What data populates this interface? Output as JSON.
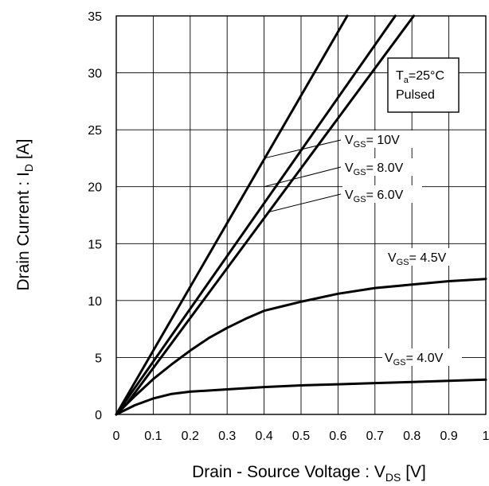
{
  "chart_data": {
    "type": "line",
    "xlabel": {
      "main": "Drain - Source Voltage : V",
      "sub": "DS",
      "unit": " [V]"
    },
    "ylabel": {
      "main": "Drain Current : I",
      "sub": "D",
      "unit": " [A]"
    },
    "xlim": [
      0,
      1
    ],
    "ylim": [
      0,
      35
    ],
    "x_ticks": [
      0,
      0.1,
      0.2,
      0.3,
      0.4,
      0.5,
      0.6,
      0.7,
      0.8,
      0.9,
      1
    ],
    "x_tick_labels": [
      "0",
      "0.1",
      "0.2",
      "0.3",
      "0.4",
      "0.5",
      "0.6",
      "0.7",
      "0.8",
      "0.9",
      "1"
    ],
    "y_ticks": [
      0,
      5,
      10,
      15,
      20,
      25,
      30,
      35
    ],
    "y_tick_labels": [
      "0",
      "5",
      "10",
      "15",
      "20",
      "25",
      "30",
      "35"
    ],
    "grid": true,
    "conditions": {
      "t_main": "T",
      "t_sub": "a",
      "t_rest": "=25°C",
      "line2": "Pulsed"
    },
    "series": [
      {
        "name": "VGS= 10V",
        "label_main": "V",
        "label_sub": "GS",
        "label_rest": "= 10V",
        "x": [
          0,
          0.625
        ],
        "y": [
          0,
          35
        ],
        "leader_at": [
          0.4,
          22.5
        ]
      },
      {
        "name": "VGS= 8.0V",
        "label_main": "V",
        "label_sub": "GS",
        "label_rest": "= 8.0V",
        "x": [
          0,
          0.755
        ],
        "y": [
          0,
          35
        ],
        "leader_at": [
          0.4,
          20.0
        ]
      },
      {
        "name": "VGS= 6.0V",
        "label_main": "V",
        "label_sub": "GS",
        "label_rest": "= 6.0V",
        "x": [
          0,
          0.03,
          0.805
        ],
        "y": [
          0,
          1.0,
          35
        ],
        "leader_at": [
          0.415,
          17.8
        ]
      },
      {
        "name": "VGS= 4.5V",
        "label_main": "V",
        "label_sub": "GS",
        "label_rest": "= 4.5V",
        "x": [
          0,
          0.05,
          0.1,
          0.15,
          0.2,
          0.25,
          0.3,
          0.35,
          0.4,
          0.45,
          0.5,
          0.6,
          0.7,
          0.8,
          0.9,
          1.0
        ],
        "y": [
          0,
          1.6,
          3.1,
          4.4,
          5.6,
          6.7,
          7.6,
          8.4,
          9.1,
          9.5,
          9.9,
          10.6,
          11.1,
          11.4,
          11.7,
          11.9
        ]
      },
      {
        "name": "VGS= 4.0V",
        "label_main": "V",
        "label_sub": "GS",
        "label_rest": "= 4.0V",
        "x": [
          0,
          0.05,
          0.1,
          0.15,
          0.2,
          0.3,
          0.4,
          0.5,
          0.6,
          0.7,
          0.8,
          0.9,
          1.0
        ],
        "y": [
          0,
          0.8,
          1.4,
          1.8,
          2.0,
          2.2,
          2.4,
          2.55,
          2.65,
          2.75,
          2.85,
          2.95,
          3.05
        ]
      }
    ]
  }
}
